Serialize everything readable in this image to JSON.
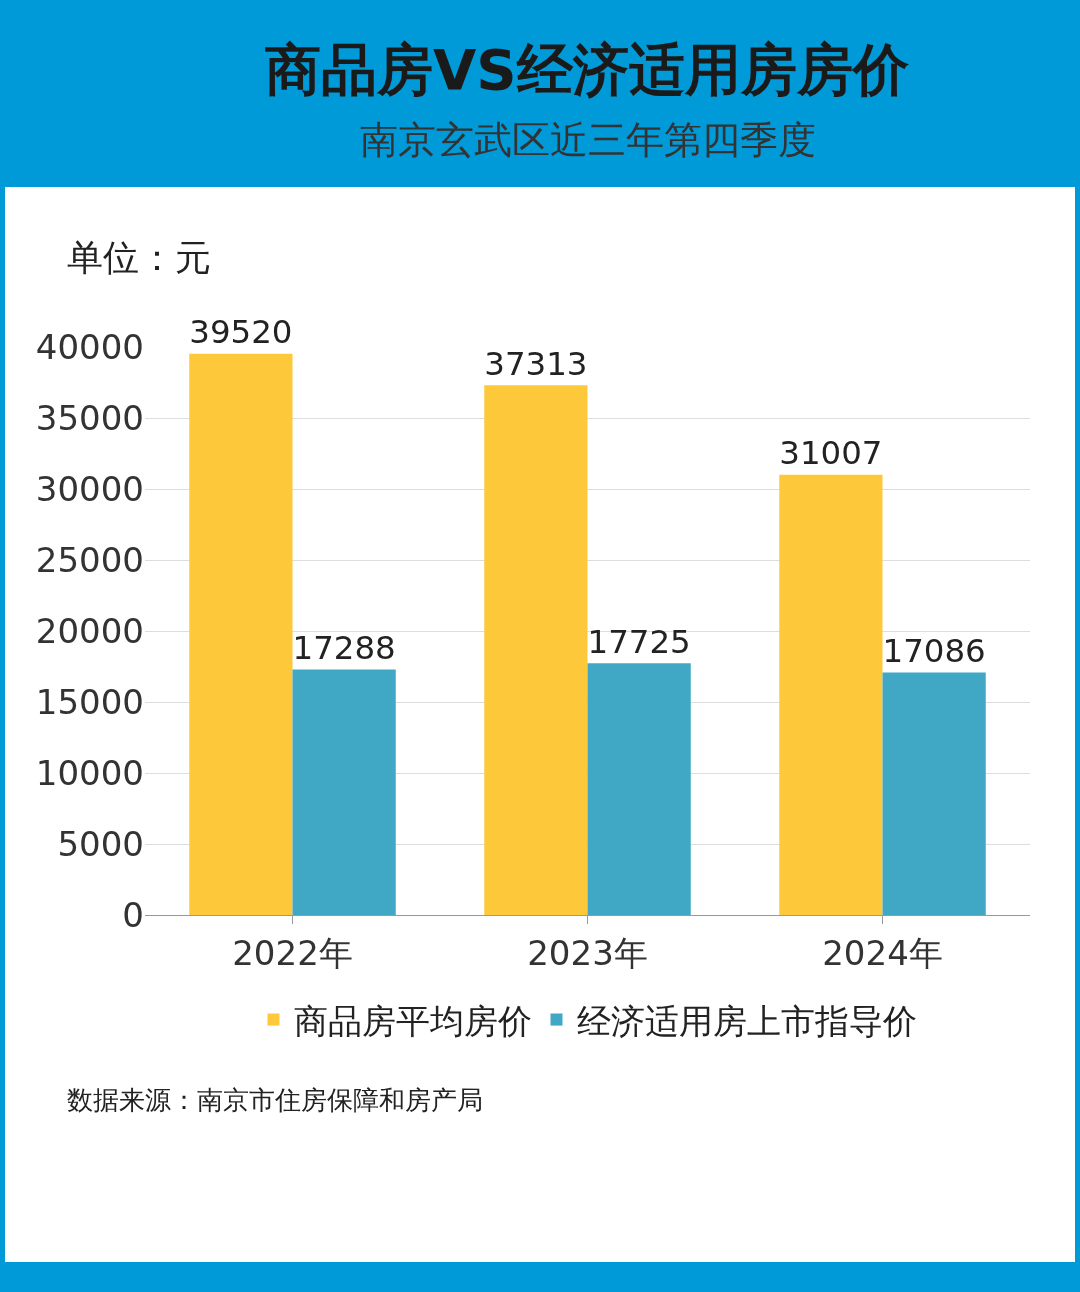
{
  "chart_data": {
    "type": "bar",
    "title": "商品房VS经济适用房房价",
    "subtitle": "南京玄武区近三年第四季度",
    "ylabel": "单位：元",
    "categories": [
      "2022年",
      "2023年",
      "2024年"
    ],
    "series": [
      {
        "name": "商品房平均房价",
        "color": "#fdc93b",
        "values": [
          39520,
          37313,
          31007
        ]
      },
      {
        "name": "经济适用房上市指导价",
        "color": "#40a8c4",
        "values": [
          17288,
          17725,
          17086
        ]
      }
    ],
    "ylim": [
      0,
      40000
    ],
    "yticks": [
      0,
      5000,
      10000,
      15000,
      20000,
      25000,
      30000,
      35000,
      40000
    ],
    "grid": "y",
    "legend": "bottom",
    "data_labels": true,
    "annotations": [
      "数据来源：南京市住房保障和房产局"
    ]
  }
}
